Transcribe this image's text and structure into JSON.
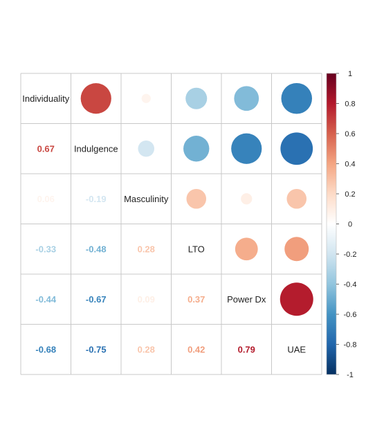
{
  "chart_data": {
    "type": "heatmap",
    "title": "",
    "variables": [
      "Individuality",
      "Indulgence",
      "Masculinity",
      "LTO",
      "Power Dx",
      "UAE"
    ],
    "matrix": [
      [
        1.0,
        0.67,
        0.06,
        -0.33,
        -0.44,
        -0.68
      ],
      [
        0.67,
        1.0,
        -0.19,
        -0.48,
        -0.67,
        -0.75
      ],
      [
        0.06,
        -0.19,
        1.0,
        0.28,
        0.09,
        0.28
      ],
      [
        -0.33,
        -0.48,
        0.28,
        1.0,
        0.37,
        0.42
      ],
      [
        -0.44,
        -0.67,
        0.09,
        0.37,
        1.0,
        0.79
      ],
      [
        -0.68,
        -0.75,
        0.28,
        0.42,
        0.79,
        1.0
      ]
    ],
    "labels": [
      [
        "",
        "",
        "",
        "",
        "",
        ""
      ],
      [
        "0.67",
        "",
        "",
        "",
        "",
        ""
      ],
      [
        "0.06",
        "-0.19",
        "",
        "",
        "",
        ""
      ],
      [
        "-0.33",
        "-0.48",
        "0.28",
        "",
        "",
        ""
      ],
      [
        "-0.44",
        "-0.67",
        "0.09",
        "0.37",
        "",
        ""
      ],
      [
        "-0.68",
        "-0.75",
        "0.28",
        "0.42",
        "0.79",
        ""
      ]
    ],
    "upper_method": "circle",
    "lower_method": "number",
    "colorbar": {
      "range": [
        -1,
        1
      ],
      "ticks": [
        "1",
        "0.8",
        "0.6",
        "0.4",
        "0.2",
        "0",
        "-0.2",
        "-0.4",
        "-0.6",
        "-0.8",
        "-1"
      ],
      "colors": [
        "#67001F",
        "#B2182B",
        "#D6604D",
        "#F4A582",
        "#FDDBC7",
        "#FFFFFF",
        "#D1E5F0",
        "#92C5DE",
        "#4393C3",
        "#2166AC",
        "#053061"
      ]
    },
    "grid": true,
    "legend_position": "right"
  }
}
